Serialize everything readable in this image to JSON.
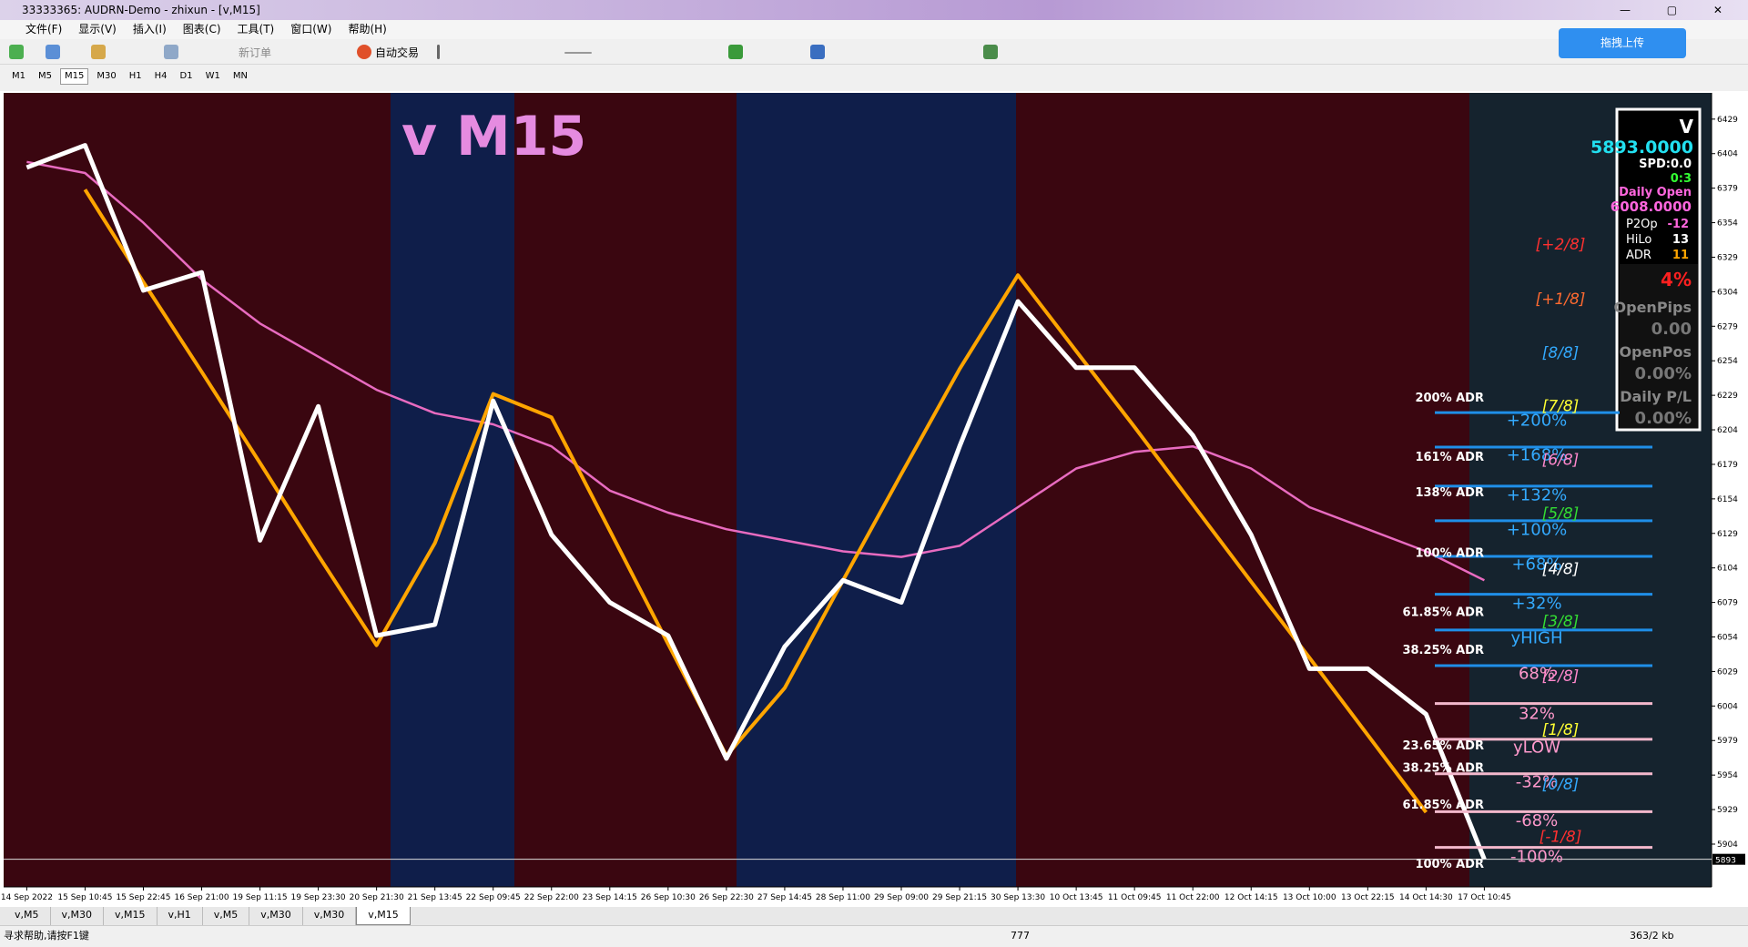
{
  "window": {
    "title": "33333365: AUDRN-Demo - zhixun - [v,M15]"
  },
  "menu": [
    "文件(F)",
    "显示(V)",
    "插入(I)",
    "图表(C)",
    "工具(T)",
    "窗口(W)",
    "帮助(H)"
  ],
  "toolbar": {
    "new_order": "新订单",
    "auto_trade": "自动交易",
    "upload": "拖拽上传"
  },
  "timeframes": [
    "M1",
    "M5",
    "M15",
    "M30",
    "H1",
    "H4",
    "D1",
    "W1",
    "MN"
  ],
  "chart_data": {
    "type": "line",
    "title": "v M15",
    "x": [
      "14 Sep 2022",
      "15 Sep 10:45",
      "15 Sep 22:45",
      "16 Sep 21:00",
      "19 Sep 11:15",
      "19 Sep 23:30",
      "20 Sep 21:30",
      "21 Sep 13:45",
      "22 Sep 09:45",
      "22 Sep 22:00",
      "23 Sep 14:15",
      "26 Sep 10:30",
      "26 Sep 22:30",
      "27 Sep 14:45",
      "28 Sep 11:00",
      "29 Sep 09:00",
      "29 Sep 21:15",
      "30 Sep 13:30",
      "10 Oct 13:45",
      "11 Oct 09:45",
      "11 Oct 22:00",
      "12 Oct 14:15",
      "13 Oct 10:00",
      "13 Oct 22:15",
      "14 Oct 14:30",
      "17 Oct 10:45"
    ],
    "series": [
      {
        "color": "#e86bc0",
        "values": [
          6398,
          6390,
          6354,
          6313,
          6281,
          6257,
          6233,
          6216,
          6208,
          6192,
          6160,
          6144,
          6132,
          6124,
          6116,
          6112,
          6120,
          6148,
          6176,
          6188,
          6192,
          6176,
          6148,
          6132,
          6116,
          6095
        ]
      },
      {
        "color": "#ffa500",
        "values": [
          null,
          6378,
          6311,
          6246,
          6180,
          6113,
          6048,
          6122,
          6230,
          6213,
          6131,
          6049,
          5968,
          6017,
          6095,
          6172,
          6248,
          6316,
          6261,
          6206,
          6150,
          6094,
          6039,
          5983,
          5927,
          null
        ]
      },
      {
        "color": "#ffffff",
        "values": [
          6394,
          6410,
          6305,
          6318,
          6124,
          6221,
          6055,
          6063,
          6225,
          6128,
          6079,
          6055,
          5966,
          6047,
          6095,
          6079,
          6192,
          6297,
          6249,
          6249,
          6200,
          6128,
          6031,
          6031,
          5998,
          5893
        ]
      }
    ],
    "ylim": [
      5873,
      6448
    ],
    "yticks": [
      6429,
      6404,
      6379,
      6354,
      6329,
      6304,
      6279,
      6254,
      6229,
      6204,
      6179,
      6154,
      6129,
      6104,
      6079,
      6054,
      6029,
      6004,
      5979,
      5954,
      5929,
      5904
    ],
    "current_price": 5893
  },
  "info_panel": {
    "symbol": "V",
    "bid": "5893.0000",
    "spread": "SPD:0.0",
    "timer": "0:3",
    "daily_open_label": "Daily Open",
    "daily_open": "6008.0000",
    "rows": [
      [
        "P2Op",
        "-12"
      ],
      [
        "HiLo",
        "13"
      ],
      [
        "ADR",
        "11"
      ]
    ],
    "pct": "4%",
    "stats": [
      [
        "OpenPips",
        "0.00"
      ],
      [
        "OpenPos",
        "0.00%"
      ],
      [
        "Daily P/L",
        "0.00%"
      ]
    ]
  },
  "levels": {
    "murrey": [
      {
        "label": "[+2/8]",
        "color": "#ff3030"
      },
      {
        "label": "[+1/8]",
        "color": "#ff6a30"
      },
      {
        "label": "[8/8]",
        "color": "#33aaff"
      },
      {
        "label": "[7/8]",
        "color": "#ffff33"
      },
      {
        "label": "[6/8]",
        "color": "#ff88cc"
      },
      {
        "label": "[5/8]",
        "color": "#33dd33"
      },
      {
        "label": "[4/8]",
        "color": "#ffffff"
      },
      {
        "label": "[3/8]",
        "color": "#33dd33"
      },
      {
        "label": "[2/8]",
        "color": "#ff88cc"
      },
      {
        "label": "[1/8]",
        "color": "#ffff33"
      },
      {
        "label": "[0/8]",
        "color": "#33aaff"
      },
      {
        "label": "[-1/8]",
        "color": "#ff3030"
      }
    ],
    "percent": [
      {
        "label": "+200%",
        "color": "#33aaff"
      },
      {
        "label": "+168%",
        "color": "#33aaff"
      },
      {
        "label": "+132%",
        "color": "#33aaff"
      },
      {
        "label": "+100%",
        "color": "#33aaff"
      },
      {
        "label": "+68%",
        "color": "#33aaff"
      },
      {
        "label": "+32%",
        "color": "#33aaff"
      },
      {
        "label": "yHIGH",
        "color": "#33aaff"
      },
      {
        "label": "68%",
        "color": "#ff99cc"
      },
      {
        "label": "32%",
        "color": "#ff99cc"
      },
      {
        "label": "yLOW",
        "color": "#ff99cc"
      },
      {
        "label": "-32%",
        "color": "#ff99cc"
      },
      {
        "label": "-68%",
        "color": "#ff99cc"
      },
      {
        "label": "-100%",
        "color": "#ff99cc"
      }
    ],
    "adr": [
      "200% ADR",
      "161% ADR",
      "138% ADR",
      "100% ADR",
      "61.85% ADR",
      "38.25% ADR",
      "23.65% ADR",
      "38.25% ADR",
      "61.85% ADR",
      "100% ADR"
    ]
  },
  "tabs": [
    "v,M5",
    "v,M30",
    "v,M15",
    "v,H1",
    "v,M5",
    "v,M30",
    "v,M30",
    "v,M15"
  ],
  "status": {
    "help": "寻求帮助,请按F1键",
    "count": "777",
    "traffic": "363/2 kb"
  }
}
